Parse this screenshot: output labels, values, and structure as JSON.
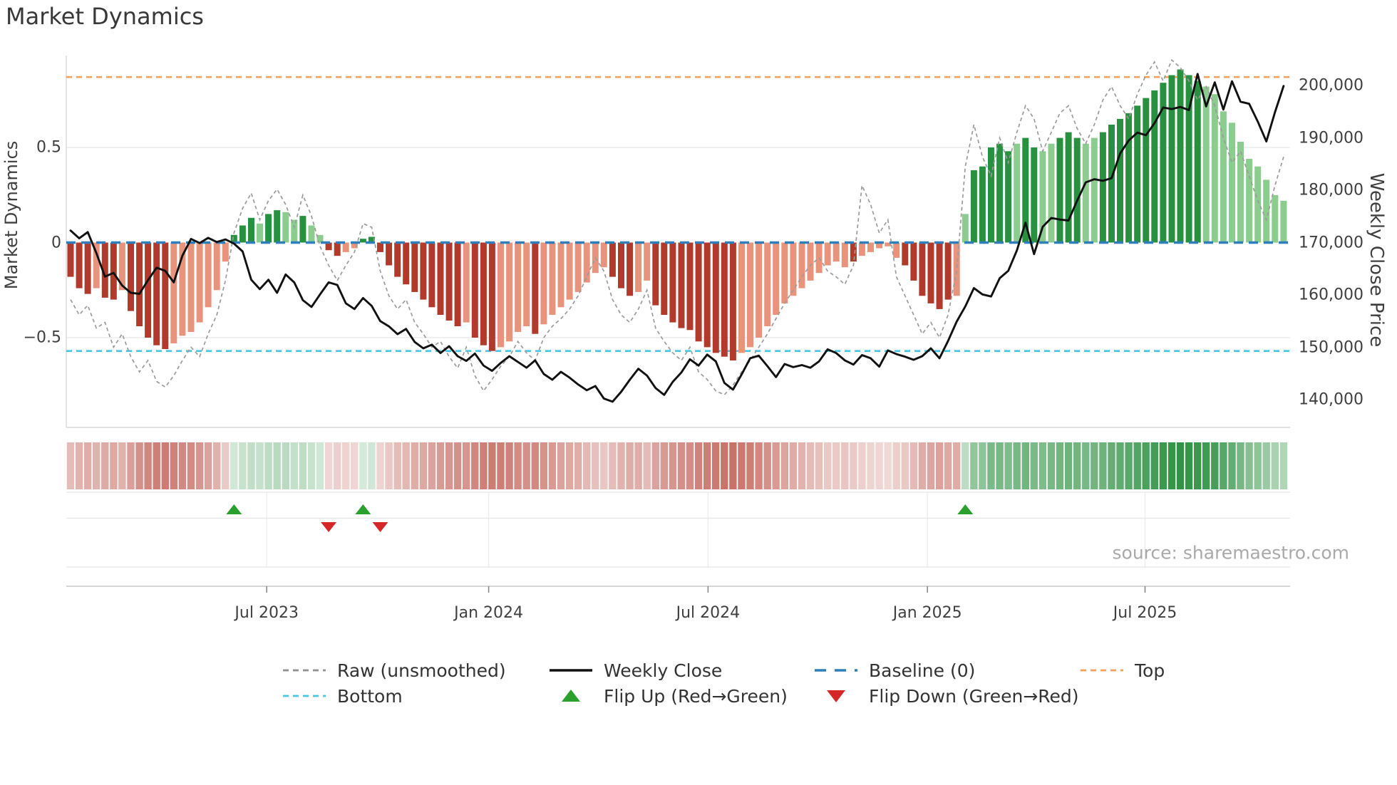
{
  "title": "Market Dynamics",
  "source_credit": "source: sharemaestro.com",
  "legend": {
    "position": "bottom-center, two rows, no frame",
    "row1": [
      {
        "glyph": "dashed-line",
        "color": "#909090",
        "label": "Raw (unsmoothed)"
      },
      {
        "glyph": "solid-line",
        "color": "#111111",
        "label": "Weekly Close"
      },
      {
        "glyph": "long-dashed-line",
        "color": "#2e7ebc",
        "label": "Baseline (0)"
      },
      {
        "glyph": "dashed-line",
        "color": "#f4a15c",
        "label": "Top"
      }
    ],
    "row2": [
      {
        "glyph": "dashed-line",
        "color": "#45c8e6",
        "label": "Bottom"
      },
      {
        "glyph": "triangle-up",
        "color": "#2ca02c",
        "label": "Flip Up (Red→Green)"
      },
      {
        "glyph": "triangle-down",
        "color": "#d62728",
        "label": "Flip Down (Green→Red)"
      }
    ]
  },
  "chart_data": {
    "type": "composite (bar + line overlay + heatmap strip + flip markers)",
    "grid": "horizontal gridlines at ±0.5 only, light gray",
    "x": {
      "unit": "week index",
      "count": 142,
      "ticks": [
        {
          "label": "Jul 2023",
          "week": 22.8
        },
        {
          "label": "Jan 2024",
          "week": 48.6
        },
        {
          "label": "Jul 2024",
          "week": 74.1
        },
        {
          "label": "Jan 2025",
          "week": 99.6
        },
        {
          "label": "Jul 2025",
          "week": 124.9
        }
      ]
    },
    "left_axis": {
      "label": "Market Dynamics",
      "range": [
        -0.97,
        0.98
      ],
      "ticks": [
        {
          "label": "0.5",
          "value": 0.5
        },
        {
          "label": "0",
          "value": 0
        },
        {
          "label": "−0.5",
          "value": -0.5
        }
      ]
    },
    "right_axis": {
      "label": "Weekly Close Price",
      "range": [
        134500,
        205700
      ],
      "ticks": [
        {
          "label": "200,000",
          "value": 200000
        },
        {
          "label": "190,000",
          "value": 190000
        },
        {
          "label": "180,000",
          "value": 180000
        },
        {
          "label": "170,000",
          "value": 170000
        },
        {
          "label": "160,000",
          "value": 160000
        },
        {
          "label": "150,000",
          "value": 150000
        },
        {
          "label": "140,000",
          "value": 140000
        }
      ]
    },
    "reference_lines": {
      "baseline": {
        "value": 0,
        "color": "#2e7ebc",
        "style": "long-dash",
        "label": "Baseline (0)"
      },
      "top": {
        "value": 0.87,
        "color": "#f4a15c",
        "style": "dash",
        "label": "Top"
      },
      "bottom": {
        "value": -0.57,
        "color": "#45c8e6",
        "style": "dash",
        "label": "Bottom"
      }
    },
    "series": {
      "dynamics_bars": {
        "type": "bar",
        "colors": {
          "pos_dark": "#28913f",
          "pos_light": "#8ccc8e",
          "neg_dark": "#b23a2c",
          "neg_light": "#e8947d"
        },
        "tone": "dddlddldddddllllllldddlddlldllddllddddddddddddldddlllldlllllllldddllddddddddddllllllllllllldlllllddddddlldddddlddlldddllddddddddddddllllllllllld",
        "values": [
          -0.18,
          -0.24,
          -0.27,
          -0.24,
          -0.29,
          -0.3,
          -0.25,
          -0.36,
          -0.44,
          -0.5,
          -0.54,
          -0.56,
          -0.53,
          -0.49,
          -0.47,
          -0.42,
          -0.34,
          -0.25,
          -0.1,
          0.04,
          0.09,
          0.13,
          0.1,
          0.15,
          0.17,
          0.16,
          0.12,
          0.14,
          0.09,
          0.04,
          -0.04,
          -0.07,
          -0.05,
          -0.03,
          0.02,
          0.03,
          -0.05,
          -0.12,
          -0.18,
          -0.22,
          -0.26,
          -0.3,
          -0.34,
          -0.38,
          -0.41,
          -0.44,
          -0.42,
          -0.5,
          -0.54,
          -0.57,
          -0.55,
          -0.52,
          -0.47,
          -0.44,
          -0.48,
          -0.43,
          -0.38,
          -0.34,
          -0.3,
          -0.26,
          -0.21,
          -0.16,
          -0.13,
          -0.18,
          -0.24,
          -0.28,
          -0.26,
          -0.2,
          -0.33,
          -0.38,
          -0.42,
          -0.45,
          -0.46,
          -0.52,
          -0.55,
          -0.58,
          -0.6,
          -0.62,
          -0.58,
          -0.55,
          -0.5,
          -0.44,
          -0.38,
          -0.32,
          -0.28,
          -0.24,
          -0.2,
          -0.16,
          -0.12,
          -0.1,
          -0.13,
          -0.1,
          -0.07,
          -0.05,
          -0.03,
          -0.02,
          -0.08,
          -0.12,
          -0.2,
          -0.28,
          -0.32,
          -0.35,
          -0.3,
          -0.28,
          0.15,
          0.38,
          0.4,
          0.5,
          0.52,
          0.48,
          0.52,
          0.55,
          0.5,
          0.48,
          0.52,
          0.55,
          0.58,
          0.55,
          0.52,
          0.55,
          0.58,
          0.62,
          0.65,
          0.68,
          0.72,
          0.76,
          0.8,
          0.84,
          0.88,
          0.91,
          0.88,
          0.85,
          0.82,
          0.78,
          0.69,
          0.63,
          0.53,
          0.44,
          0.4,
          0.33,
          0.25,
          0.22
        ]
      },
      "raw": {
        "type": "line",
        "style": "dashed",
        "color": "#9b9b9b",
        "values": [
          -0.3,
          -0.38,
          -0.33,
          -0.45,
          -0.42,
          -0.55,
          -0.48,
          -0.6,
          -0.68,
          -0.62,
          -0.73,
          -0.76,
          -0.7,
          -0.62,
          -0.55,
          -0.6,
          -0.48,
          -0.38,
          -0.2,
          0.05,
          0.18,
          0.26,
          0.12,
          0.22,
          0.28,
          0.2,
          0.08,
          0.25,
          0.14,
          -0.02,
          -0.12,
          -0.2,
          -0.12,
          -0.05,
          0.1,
          0.08,
          -0.15,
          -0.28,
          -0.35,
          -0.3,
          -0.42,
          -0.48,
          -0.55,
          -0.52,
          -0.6,
          -0.66,
          -0.55,
          -0.7,
          -0.78,
          -0.72,
          -0.65,
          -0.6,
          -0.52,
          -0.58,
          -0.62,
          -0.5,
          -0.44,
          -0.4,
          -0.35,
          -0.28,
          -0.18,
          -0.08,
          -0.15,
          -0.3,
          -0.38,
          -0.42,
          -0.35,
          -0.25,
          -0.45,
          -0.52,
          -0.58,
          -0.62,
          -0.55,
          -0.68,
          -0.72,
          -0.78,
          -0.8,
          -0.75,
          -0.68,
          -0.62,
          -0.55,
          -0.48,
          -0.4,
          -0.32,
          -0.25,
          -0.18,
          -0.12,
          -0.08,
          -0.15,
          -0.18,
          -0.22,
          -0.12,
          0.3,
          0.2,
          0.05,
          0.12,
          -0.18,
          -0.28,
          -0.38,
          -0.48,
          -0.42,
          -0.5,
          -0.38,
          -0.15,
          0.4,
          0.62,
          0.45,
          0.35,
          0.55,
          0.42,
          0.58,
          0.72,
          0.65,
          0.48,
          0.58,
          0.68,
          0.72,
          0.6,
          0.52,
          0.62,
          0.75,
          0.82,
          0.72,
          0.65,
          0.78,
          0.88,
          0.95,
          0.85,
          0.96,
          0.92,
          0.85,
          0.75,
          0.82,
          0.72,
          0.55,
          0.42,
          0.48,
          0.35,
          0.22,
          0.12,
          0.3,
          0.45
        ]
      },
      "weekly_close": {
        "type": "line",
        "color": "#111111",
        "values": [
          172300,
          170800,
          172000,
          168000,
          163500,
          164200,
          161800,
          160400,
          160200,
          162800,
          165200,
          164600,
          162400,
          167500,
          170700,
          169900,
          170900,
          170100,
          170600,
          169800,
          168300,
          162900,
          161100,
          162900,
          160400,
          163900,
          162400,
          159000,
          157700,
          160100,
          162400,
          161900,
          158400,
          157300,
          159400,
          157900,
          155000,
          154000,
          152500,
          153500,
          151000,
          149800,
          150500,
          148900,
          150200,
          148300,
          147400,
          148800,
          146500,
          145500,
          147000,
          148300,
          147200,
          146100,
          147500,
          144900,
          143800,
          145300,
          144200,
          142900,
          141800,
          142600,
          140200,
          139600,
          141500,
          143800,
          145900,
          144600,
          142200,
          140900,
          143400,
          145200,
          147700,
          146500,
          148600,
          147300,
          143200,
          141900,
          144800,
          147900,
          148400,
          146400,
          144300,
          146800,
          146200,
          146600,
          146100,
          147300,
          149600,
          148900,
          147500,
          146700,
          148500,
          147900,
          146300,
          149400,
          148700,
          148200,
          147600,
          148300,
          149800,
          147900,
          151200,
          154900,
          157800,
          161300,
          160100,
          159700,
          163200,
          164600,
          168500,
          173800,
          167800,
          173000,
          174700,
          174400,
          174200,
          178000,
          181500,
          182100,
          181800,
          182300,
          187000,
          189500,
          191000,
          190500,
          192800,
          195800,
          195500,
          195900,
          195300,
          202200,
          196000,
          200600,
          195400,
          200800,
          196900,
          196500,
          193100,
          189300,
          194900,
          199900
        ]
      }
    },
    "heatmap": {
      "description": "weekly strip below main chart, intensity = |dynamics| ",
      "source_series": "dynamics_bars",
      "pos_rgb": "40,143,61",
      "neg_rgb": "179,59,46"
    },
    "flip_markers": {
      "up": {
        "weeks": [
          19,
          34,
          104
        ],
        "color": "#2ca02c"
      },
      "down": {
        "weeks": [
          30,
          36
        ],
        "color": "#d62728"
      }
    }
  }
}
